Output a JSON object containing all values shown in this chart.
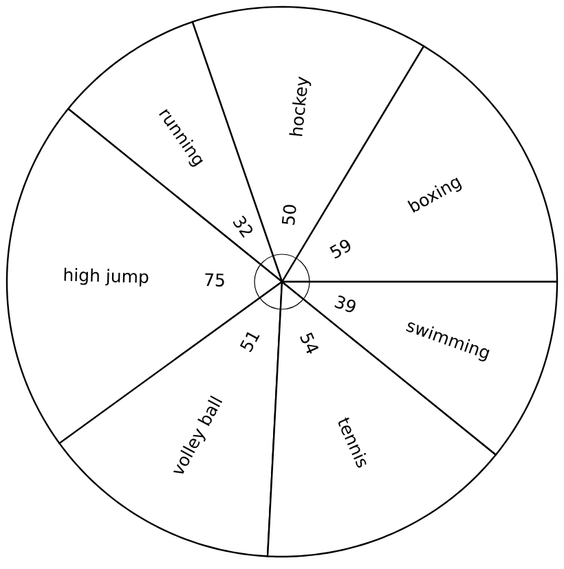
{
  "chart_data": {
    "type": "pie",
    "categories": [
      "boxing",
      "hockey",
      "running",
      "high jump",
      "volley ball",
      "tennis",
      "swimming"
    ],
    "values": [
      59,
      50,
      32,
      75,
      51,
      54,
      39
    ],
    "colors": [
      "#ffffff",
      "#ffffff",
      "#ffffff",
      "#ffffff",
      "#ffffff",
      "#ffffff",
      "#ffffff"
    ],
    "data_labels": true
  }
}
